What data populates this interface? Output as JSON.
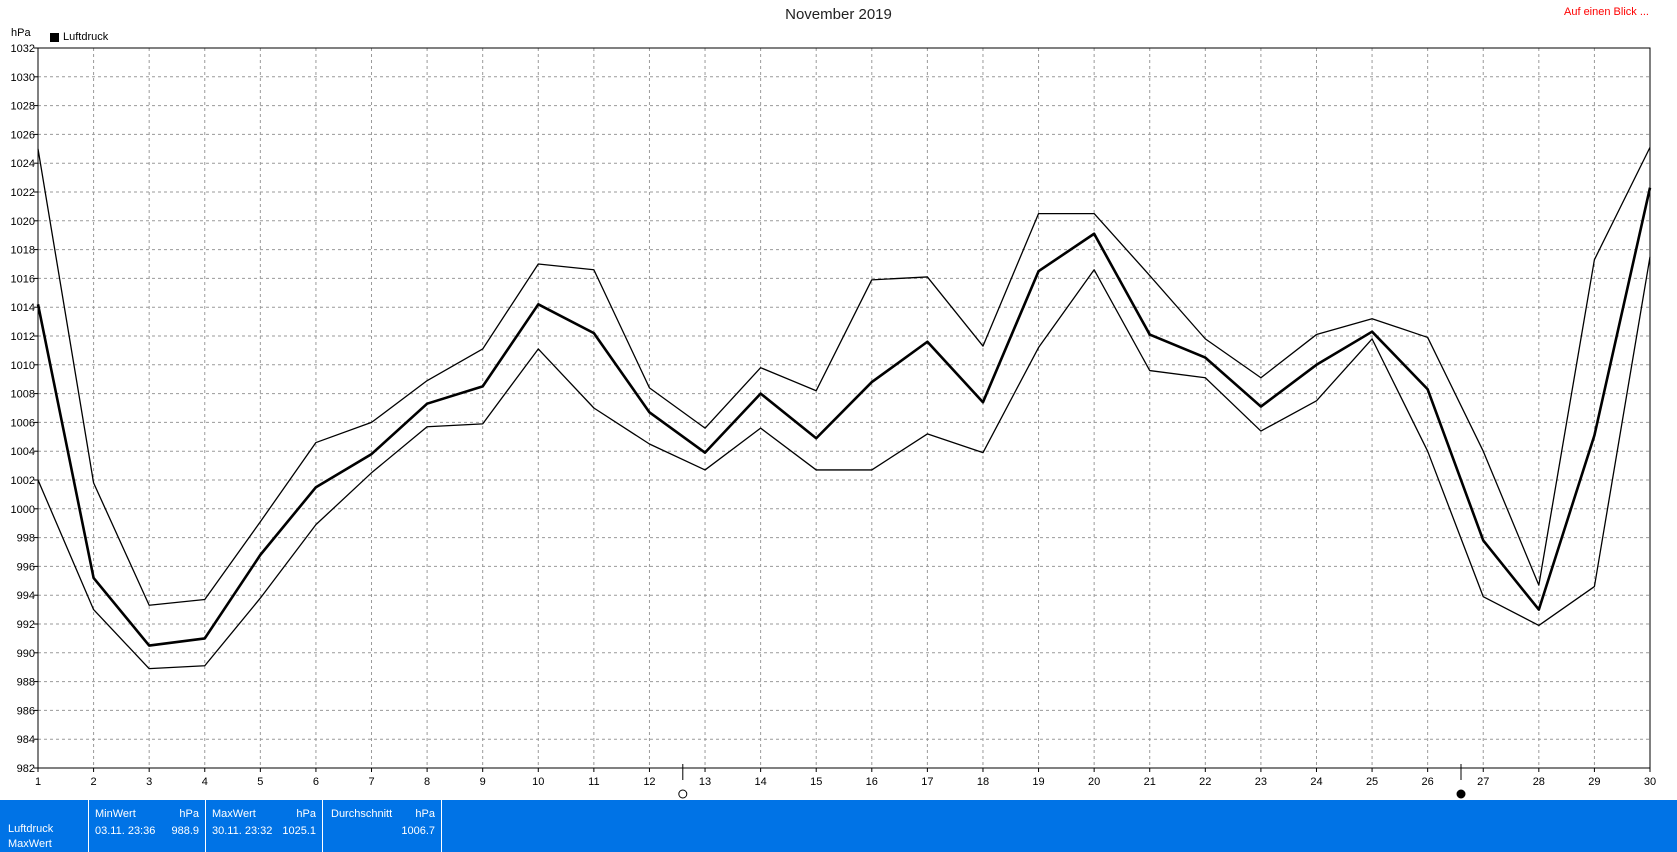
{
  "header": {
    "title": "November 2019",
    "quick_link": "Auf einen Blick ...",
    "unit": "hPa"
  },
  "legend": {
    "label": "Luftdruck",
    "color": "#000000"
  },
  "chart_data": {
    "type": "line",
    "title": "November 2019",
    "ylabel": "hPa",
    "xlabel": "",
    "ylim": [
      982,
      1032
    ],
    "y_ticks": [
      982,
      984,
      986,
      988,
      990,
      992,
      994,
      996,
      998,
      1000,
      1002,
      1004,
      1006,
      1008,
      1010,
      1012,
      1014,
      1016,
      1018,
      1020,
      1022,
      1024,
      1026,
      1028,
      1030,
      1032
    ],
    "x": [
      1,
      2,
      3,
      4,
      5,
      6,
      7,
      8,
      9,
      10,
      11,
      12,
      13,
      14,
      15,
      16,
      17,
      18,
      19,
      20,
      21,
      22,
      23,
      24,
      25,
      26,
      27,
      28,
      29,
      30
    ],
    "x_tick_labels": [
      "1",
      "2",
      "3",
      "4",
      "5",
      "6",
      "7",
      "8",
      "9",
      "10",
      "11",
      "12",
      "13",
      "14",
      "15",
      "16",
      "17",
      "18",
      "19",
      "20",
      "21",
      "22",
      "23",
      "24",
      "25",
      "26",
      "27",
      "28",
      "29",
      "30"
    ],
    "grid": true,
    "legend_position": "top-left",
    "moon_phase_markers": [
      {
        "x": 12.6,
        "symbol": "full-moon"
      },
      {
        "x": 26.6,
        "symbol": "new-moon"
      }
    ],
    "series": [
      {
        "name": "Luftdruck",
        "role": "max",
        "values": [
          1025.0,
          1001.8,
          993.3,
          993.7,
          999.1,
          1004.6,
          1006.0,
          1008.9,
          1011.1,
          1017.0,
          1016.6,
          1008.4,
          1005.6,
          1009.8,
          1008.2,
          1015.9,
          1016.1,
          1011.3,
          1020.5,
          1020.5,
          1016.2,
          1011.8,
          1009.1,
          1012.1,
          1013.2,
          1011.9,
          1004.0,
          994.7,
          1017.3,
          1025.1
        ]
      },
      {
        "name": "Luftdruck",
        "role": "mean",
        "values": [
          1014.2,
          995.2,
          990.5,
          991.0,
          996.8,
          1001.5,
          1003.8,
          1007.3,
          1008.5,
          1014.2,
          1012.2,
          1006.7,
          1003.9,
          1008.0,
          1004.9,
          1008.8,
          1011.6,
          1007.4,
          1016.5,
          1019.1,
          1012.1,
          1010.5,
          1007.1,
          1010.0,
          1012.3,
          1008.3,
          997.8,
          993.0,
          1005.1,
          1022.3
        ]
      },
      {
        "name": "Luftdruck",
        "role": "min",
        "values": [
          1002.0,
          993.0,
          988.9,
          989.1,
          993.8,
          998.9,
          1002.5,
          1005.7,
          1005.9,
          1011.1,
          1007.0,
          1004.5,
          1002.7,
          1005.6,
          1002.7,
          1002.7,
          1005.2,
          1003.9,
          1011.2,
          1016.6,
          1009.6,
          1009.1,
          1005.4,
          1007.5,
          1011.8,
          1004.0,
          993.9,
          991.9,
          994.6,
          1017.5
        ]
      }
    ]
  },
  "stats": {
    "row_label_1": "Luftdruck",
    "row_label_2": "MaxWert",
    "min": {
      "header": "MinWert",
      "unit": "hPa",
      "time": "03.11.  23:36",
      "value": "988.9"
    },
    "max": {
      "header": "MaxWert",
      "unit": "hPa",
      "time": "30.11.  23:32",
      "value": "1025.1"
    },
    "avg": {
      "header": "Durchschnitt",
      "unit": "hPa",
      "value": "1006.7"
    },
    "bar_color": "#0073e6"
  }
}
